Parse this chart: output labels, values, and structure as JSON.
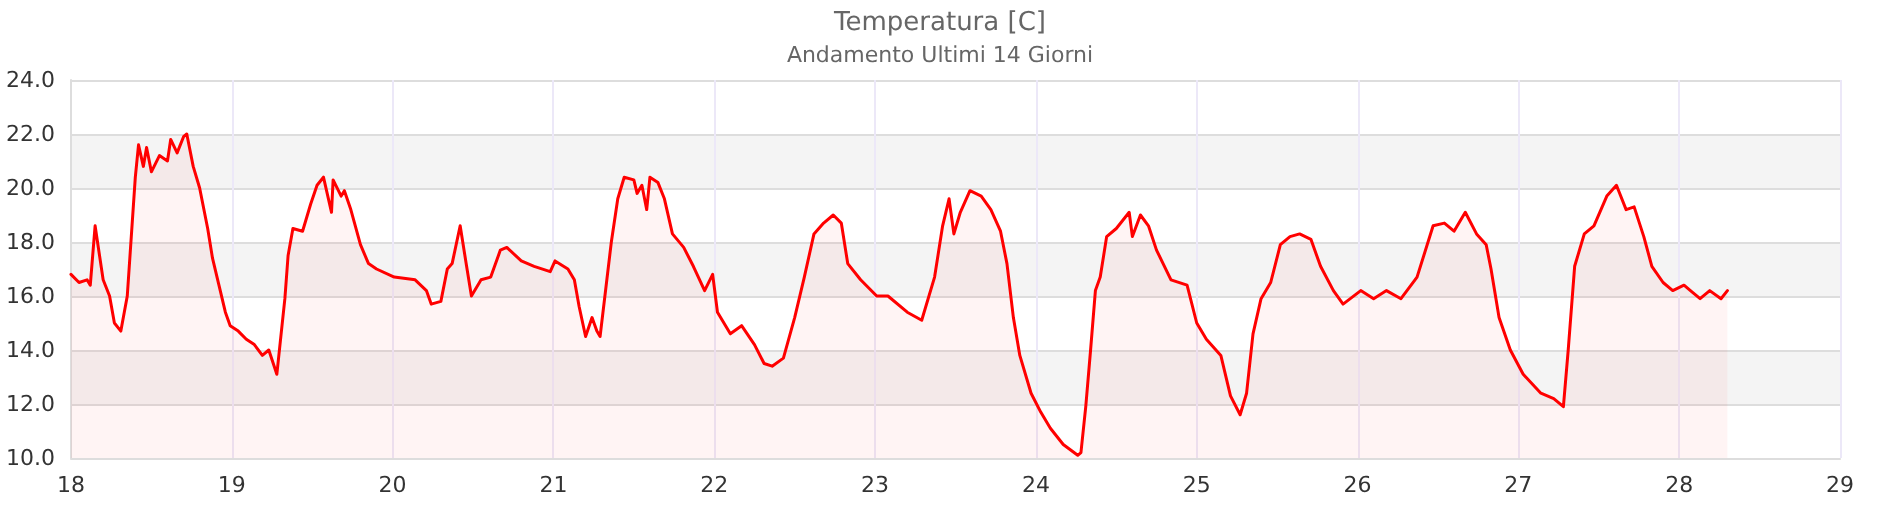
{
  "chart_data": {
    "type": "area",
    "title": "Temperatura [C]",
    "subtitle": "Andamento Ultimi 14 Giorni",
    "xlim": [
      18,
      29
    ],
    "xticks": [
      18,
      19,
      20,
      21,
      22,
      23,
      24,
      25,
      26,
      27,
      28,
      29
    ],
    "ylim": [
      10,
      24
    ],
    "yticks": [
      {
        "value": 10,
        "label": "10.0"
      },
      {
        "value": 12,
        "label": "12.0"
      },
      {
        "value": 14,
        "label": "14.0"
      },
      {
        "value": 16,
        "label": "16.0"
      },
      {
        "value": 18,
        "label": "18.0"
      },
      {
        "value": 20,
        "label": "20.0"
      },
      {
        "value": 22,
        "label": "22.0"
      },
      {
        "value": 24,
        "label": "24.0"
      }
    ],
    "grid": true,
    "marker": "none",
    "line_style": "solid",
    "series": [
      {
        "color": "#ff0000",
        "x": [
          18.0,
          18.05,
          18.1,
          18.12,
          18.15,
          18.2,
          18.24,
          18.27,
          18.31,
          18.35,
          18.4,
          18.42,
          18.45,
          18.47,
          18.5,
          18.55,
          18.6,
          18.62,
          18.66,
          18.7,
          18.72,
          18.76,
          18.8,
          18.85,
          18.88,
          18.92,
          18.96,
          18.99,
          19.04,
          19.09,
          19.14,
          19.19,
          19.23,
          19.28,
          19.33,
          19.35,
          19.38,
          19.44,
          19.49,
          19.53,
          19.57,
          19.62,
          19.63,
          19.68,
          19.7,
          19.74,
          19.8,
          19.85,
          19.9,
          20.01,
          20.14,
          20.21,
          20.24,
          20.3,
          20.34,
          20.37,
          20.42,
          20.46,
          20.49,
          20.55,
          20.61,
          20.67,
          20.71,
          20.8,
          20.88,
          20.98,
          21.01,
          21.09,
          21.13,
          21.16,
          21.2,
          21.24,
          21.27,
          21.29,
          21.33,
          21.36,
          21.4,
          21.44,
          21.5,
          21.52,
          21.55,
          21.58,
          21.6,
          21.65,
          21.69,
          21.74,
          21.81,
          21.87,
          21.94,
          21.99,
          22.02,
          22.1,
          22.17,
          22.25,
          22.31,
          22.36,
          22.43,
          22.5,
          22.56,
          22.62,
          22.68,
          22.74,
          22.79,
          22.83,
          22.91,
          23.01,
          23.08,
          23.2,
          23.29,
          23.37,
          23.42,
          23.46,
          23.49,
          23.53,
          23.59,
          23.66,
          23.72,
          23.78,
          23.82,
          23.86,
          23.9,
          23.97,
          24.03,
          24.09,
          24.17,
          24.26,
          24.28,
          24.31,
          24.34,
          24.37,
          24.4,
          24.44,
          24.5,
          24.58,
          24.6,
          24.65,
          24.7,
          24.75,
          24.84,
          24.94,
          25.0,
          25.06,
          25.15,
          25.21,
          25.27,
          25.31,
          25.35,
          25.4,
          25.46,
          25.52,
          25.58,
          25.64,
          25.71,
          25.77,
          25.85,
          25.91,
          26.02,
          26.1,
          26.18,
          26.27,
          26.37,
          26.47,
          26.54,
          26.6,
          26.67,
          26.74,
          26.8,
          26.83,
          26.88,
          26.95,
          27.03,
          27.14,
          27.22,
          27.28,
          27.31,
          27.35,
          27.41,
          27.47,
          27.55,
          27.61,
          27.67,
          27.72,
          27.78,
          27.83,
          27.9,
          27.96,
          28.03,
          28.07,
          28.13,
          28.19,
          28.26,
          28.3
        ],
        "values": [
          16.8,
          16.5,
          16.6,
          16.4,
          18.6,
          16.6,
          16.0,
          15.0,
          14.7,
          16.0,
          20.4,
          21.6,
          20.8,
          21.5,
          20.6,
          21.2,
          21.0,
          21.8,
          21.3,
          21.9,
          22.0,
          20.8,
          20.0,
          18.5,
          17.4,
          16.4,
          15.4,
          14.9,
          14.7,
          14.4,
          14.2,
          13.8,
          14.0,
          13.1,
          15.9,
          17.5,
          18.5,
          18.4,
          19.4,
          20.1,
          20.4,
          19.1,
          20.3,
          19.7,
          19.9,
          19.2,
          17.9,
          17.2,
          17.0,
          16.7,
          16.6,
          16.2,
          15.7,
          15.8,
          17.0,
          17.2,
          18.6,
          17.1,
          16.0,
          16.6,
          16.7,
          17.7,
          17.8,
          17.3,
          17.1,
          16.9,
          17.3,
          17.0,
          16.6,
          15.6,
          14.5,
          15.2,
          14.7,
          14.5,
          16.5,
          18.0,
          19.6,
          20.4,
          20.3,
          19.8,
          20.1,
          19.2,
          20.4,
          20.2,
          19.6,
          18.3,
          17.8,
          17.1,
          16.2,
          16.8,
          15.4,
          14.6,
          14.9,
          14.2,
          13.5,
          13.4,
          13.7,
          15.2,
          16.7,
          18.3,
          18.7,
          19.0,
          18.7,
          17.2,
          16.6,
          16.0,
          16.0,
          15.4,
          15.1,
          16.7,
          18.6,
          19.6,
          18.3,
          19.1,
          19.9,
          19.7,
          19.2,
          18.4,
          17.2,
          15.2,
          13.8,
          12.4,
          11.7,
          11.1,
          10.5,
          10.1,
          10.2,
          11.9,
          14.0,
          16.2,
          16.7,
          18.2,
          18.5,
          19.1,
          18.2,
          19.0,
          18.6,
          17.7,
          16.6,
          16.4,
          15.0,
          14.4,
          13.8,
          12.3,
          11.6,
          12.4,
          14.6,
          15.9,
          16.5,
          17.9,
          18.2,
          18.3,
          18.1,
          17.1,
          16.2,
          15.7,
          16.2,
          15.9,
          16.2,
          15.9,
          16.7,
          18.6,
          18.7,
          18.4,
          19.1,
          18.3,
          17.9,
          17.0,
          15.2,
          14.0,
          13.1,
          12.4,
          12.2,
          11.9,
          14.0,
          17.1,
          18.3,
          18.6,
          19.7,
          20.1,
          19.2,
          19.3,
          18.2,
          17.1,
          16.5,
          16.2,
          16.4,
          16.2,
          15.9,
          16.2,
          15.9,
          16.2
        ]
      }
    ]
  }
}
